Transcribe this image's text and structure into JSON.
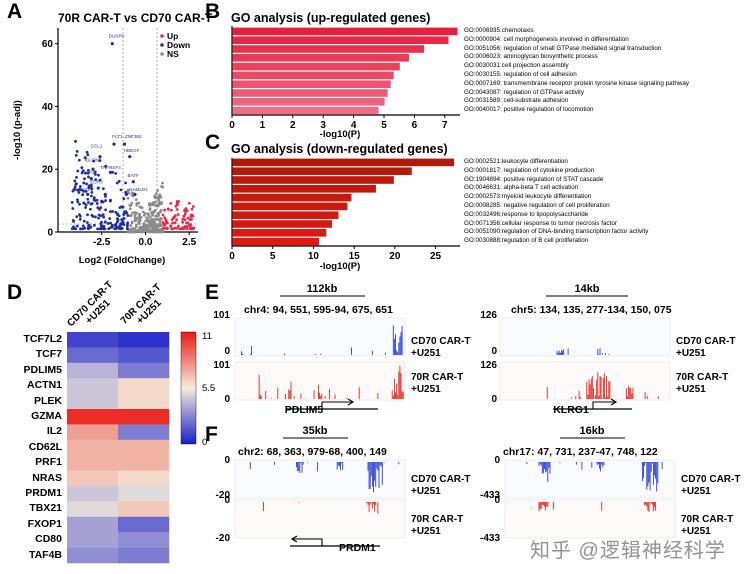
{
  "panels": {
    "A": {
      "letter": "A",
      "title": "70R CAR-T vs CD70 CAR-T",
      "ylabel": "-log10 (p-adj)",
      "xlabel": "Log2 (FoldChange)",
      "legend": [
        "Up",
        "Down",
        "NS"
      ],
      "gene_labels": [
        "DUSP6",
        "FLT1",
        "ZNF382",
        "CCL1",
        "HBEGF",
        "IGLON5",
        "TNFRSF4",
        "ICSP1",
        "BATF",
        "EGR3",
        "NR4A1",
        "NAMLD1"
      ]
    },
    "B": {
      "letter": "B",
      "title": "GO analysis (up-regulated genes)",
      "xlabel": "-log10(P)"
    },
    "C": {
      "letter": "C",
      "title": "GO analysis (down-regulated genes)",
      "xlabel": "-log10(P)"
    },
    "D": {
      "letter": "D",
      "col_labels": [
        "CD70 CAR-T +U251",
        "70R CAR-T +U251"
      ],
      "genes": [
        "TCF7L2",
        "TCF7",
        "PDLIM5",
        "ACTN1",
        "PLEK",
        "GZMA",
        "IL2",
        "CD62L",
        "PRF1",
        "NRAS",
        "PRDM1",
        "TBX21",
        "FXOP1",
        "CD80",
        "TAF4B"
      ],
      "scale_labels": [
        "11",
        "5.5",
        "0"
      ]
    },
    "E": {
      "letter": "E",
      "left": {
        "scale": "112kb",
        "coords": "chr4: 94, 551, 595-94, 675, 651",
        "gene": "PDLIM5",
        "ymax1": "101",
        "ymin1": "0",
        "ymax2": "101",
        "ymin2": "0"
      },
      "right": {
        "scale": "14kb",
        "coords": "chr5: 134, 135, 277-134, 150, 075",
        "gene": "KLRG1",
        "ymax1": "126",
        "ymin1": "0",
        "ymax2": "126",
        "ymin2": "0"
      },
      "track1_label": [
        "CD70 CAR-T",
        "+U251"
      ],
      "track2_label": [
        "70R CAR-T",
        "+U251"
      ]
    },
    "F": {
      "letter": "F",
      "left": {
        "scale": "35kb",
        "coords": "chr2: 68, 363, 979-68, 400, 149",
        "gene": "PRDM1",
        "y1": "0",
        "y2": "-20",
        "y3": "0",
        "y4": "-20"
      },
      "right": {
        "scale": "16kb",
        "coords": "chr17: 47, 731, 237-47, 748, 122",
        "y1": "0",
        "y2": "-433",
        "y3": "0",
        "y4": "-433"
      },
      "track1_label": [
        "CD70 CAR-T",
        "+U251"
      ],
      "track2_label": [
        "70R CAR-T",
        "+U251"
      ]
    }
  },
  "watermark": "知乎 @逻辑神经科学",
  "chart_data": [
    {
      "type": "scatter",
      "title": "70R CAR-T vs CD70 CAR-T",
      "xlabel": "Log2 (FoldChange)",
      "ylabel": "-log10 (p-adj)",
      "xlim": [
        -5,
        3
      ],
      "ylim": [
        0,
        65
      ],
      "xticks": [
        "-2.5",
        "0.0",
        "2.5"
      ],
      "yticks": [
        "0",
        "20",
        "40",
        "60"
      ],
      "series": [
        {
          "name": "Up",
          "color": "#e8284a"
        },
        {
          "name": "Down",
          "color": "#1f2d9e"
        },
        {
          "name": "NS",
          "color": "#8c8c8c"
        }
      ]
    },
    {
      "type": "bar",
      "title": "GO analysis (up-regulated genes)",
      "xlabel": "-log10(P)",
      "xlim": [
        0,
        7.5
      ],
      "xticks": [
        "0",
        "1",
        "2",
        "3",
        "4",
        "5",
        "6",
        "7"
      ],
      "categories": [
        "GO:0006935:chemotaxis",
        "GO:0000904: cell morphogenesis involved in differentiation",
        "GO:0051056: regulation of small GTPase mediated signal transduction",
        "GO:0006023: aminoglycan biosynthetic process",
        "GO:0030031:cell projection assembly",
        "GO:0030155: regulation of cell adhesion",
        "GO:0007169: transmembrane receptor protein tyrosine kinase signaling pathway",
        "GO:0043087: regulation of GTPase activity",
        "GO:0031589: cell-substrate adhesion",
        "GO:0040017: positive regulation of locomotion"
      ],
      "values": [
        7.4,
        7.1,
        6.3,
        5.8,
        5.5,
        5.3,
        5.2,
        5.1,
        5.0,
        4.8
      ]
    },
    {
      "type": "bar",
      "title": "GO analysis (down-regulated genes)",
      "xlabel": "-log10(P)",
      "xlim": [
        0,
        28
      ],
      "xticks": [
        "0",
        "5",
        "10",
        "15",
        "20",
        "25"
      ],
      "categories": [
        "GO:0002521:leukocyte differentiation",
        "GO:0001817: regulation of cytokine production",
        "GO:1904894: positive regulation of STAT cascade",
        "GO:0046631: alpha-beta T cell activation",
        "GO:0002573:myeloid leukocyte differentiation",
        "GO:0008285: negative regulation of cell proliferation",
        "GO:0032496:response to lipopolysaccharide",
        "GO:0071356:cellular response to tumor necrosis factor",
        "GO:0051090:regulation of DNA-binding transcription factor activity",
        "GO:0030888:regulation of B cell proliferation"
      ],
      "values": [
        27.2,
        22.0,
        19.8,
        17.6,
        14.6,
        14.1,
        13.0,
        12.2,
        11.5,
        10.6
      ]
    },
    {
      "type": "heatmap",
      "rows": [
        "TCF7L2",
        "TCF7",
        "PDLIM5",
        "ACTN1",
        "PLEK",
        "GZMA",
        "IL2",
        "CD62L",
        "PRF1",
        "NRAS",
        "PRDM1",
        "TBX21",
        "FXOP1",
        "CD80",
        "TAF4B"
      ],
      "columns": [
        "CD70 CAR-T +U251",
        "70R CAR-T +U251"
      ],
      "values": [
        [
          1.0,
          0.5
        ],
        [
          2.0,
          1.5
        ],
        [
          4.0,
          2.5
        ],
        [
          4.5,
          6.0
        ],
        [
          4.5,
          6.0
        ],
        [
          10.5,
          10.5
        ],
        [
          7.5,
          2.5
        ],
        [
          7.0,
          7.0
        ],
        [
          7.0,
          7.0
        ],
        [
          6.5,
          6.0
        ],
        [
          4.5,
          5.0
        ],
        [
          5.0,
          6.5
        ],
        [
          3.5,
          2.0
        ],
        [
          3.5,
          3.0
        ],
        [
          3.0,
          2.5
        ]
      ],
      "vmin": 0,
      "vmax": 11
    }
  ]
}
